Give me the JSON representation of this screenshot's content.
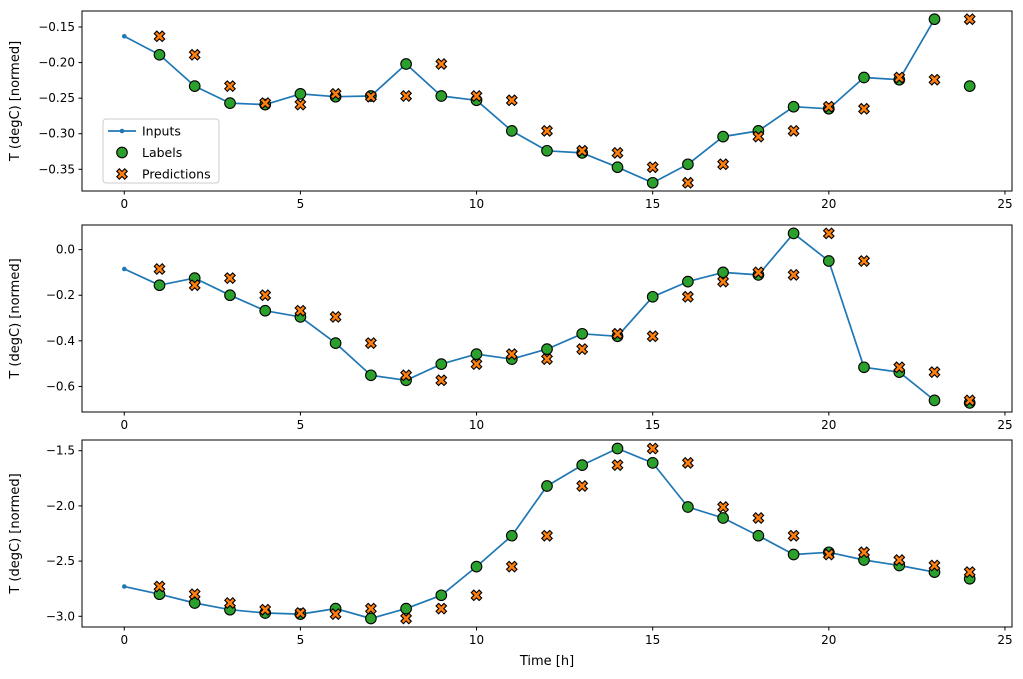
{
  "figure": {
    "xlabel": "Time [h]",
    "ylabel": "T (degC) [normed]",
    "x_ticks": [
      0,
      5,
      10,
      15,
      20,
      25
    ],
    "x_tick_labels": [
      "0",
      "5",
      "10",
      "15",
      "20",
      "25"
    ],
    "background_color": "#ffffff",
    "spine_color": "#000000",
    "legend": {
      "position": "upper left area of first subplot",
      "border_color": "#cccccc",
      "items": [
        {
          "label": "Inputs",
          "marker": "line-dot",
          "color": "#1f77b4"
        },
        {
          "label": "Labels",
          "marker": "circle",
          "color": "#2ca02c",
          "edge_color": "#000000"
        },
        {
          "label": "Predictions",
          "marker": "x",
          "color": "#ff7f0e",
          "edge_color": "#000000"
        }
      ]
    }
  },
  "chart_data": [
    {
      "type": "line",
      "title": "",
      "xlabel": "",
      "ylabel": "T (degC) [normed]",
      "xlim": [
        -1.2,
        25.2
      ],
      "ylim": [
        -0.3805,
        -0.1275
      ],
      "x_ticks": [
        0,
        5,
        10,
        15,
        20,
        25
      ],
      "y_ticks": [
        -0.15,
        -0.2,
        -0.25,
        -0.3,
        -0.35
      ],
      "y_tick_labels": [
        "−0.15",
        "−0.20",
        "−0.25",
        "−0.30",
        "−0.35"
      ],
      "grid": false,
      "series": [
        {
          "name": "Inputs",
          "style": "line-dot",
          "color": "#1f77b4",
          "x": [
            0,
            1,
            2,
            3,
            4,
            5,
            6,
            7,
            8,
            9,
            10,
            11,
            12,
            13,
            14,
            15,
            16,
            17,
            18,
            19,
            20,
            21,
            22,
            23
          ],
          "y": [
            -0.163,
            -0.189,
            -0.233,
            -0.257,
            -0.259,
            -0.244,
            -0.248,
            -0.247,
            -0.202,
            -0.247,
            -0.253,
            -0.296,
            -0.324,
            -0.327,
            -0.347,
            -0.369,
            -0.343,
            -0.304,
            -0.296,
            -0.262,
            -0.265,
            -0.221,
            -0.224,
            -0.139
          ]
        },
        {
          "name": "Labels",
          "style": "circle",
          "color": "#2ca02c",
          "x": [
            1,
            2,
            3,
            4,
            5,
            6,
            7,
            8,
            9,
            10,
            11,
            12,
            13,
            14,
            15,
            16,
            17,
            18,
            19,
            20,
            21,
            22,
            23,
            24
          ],
          "y": [
            -0.189,
            -0.233,
            -0.257,
            -0.259,
            -0.244,
            -0.248,
            -0.247,
            -0.202,
            -0.247,
            -0.253,
            -0.296,
            -0.324,
            -0.327,
            -0.347,
            -0.369,
            -0.343,
            -0.304,
            -0.296,
            -0.262,
            -0.265,
            -0.221,
            -0.224,
            -0.139,
            -0.233
          ]
        },
        {
          "name": "Predictions",
          "style": "x",
          "color": "#ff7f0e",
          "x": [
            1,
            2,
            3,
            4,
            5,
            6,
            7,
            8,
            9,
            10,
            11,
            12,
            13,
            14,
            15,
            16,
            17,
            18,
            19,
            20,
            21,
            22,
            23,
            24
          ],
          "y": [
            -0.163,
            -0.189,
            -0.233,
            -0.257,
            -0.259,
            -0.244,
            -0.248,
            -0.247,
            -0.202,
            -0.247,
            -0.253,
            -0.296,
            -0.324,
            -0.327,
            -0.347,
            -0.369,
            -0.343,
            -0.304,
            -0.296,
            -0.262,
            -0.265,
            -0.221,
            -0.224,
            -0.139
          ]
        }
      ]
    },
    {
      "type": "line",
      "title": "",
      "xlabel": "",
      "ylabel": "T (degC) [normed]",
      "xlim": [
        -1.2,
        25.2
      ],
      "ylim": [
        -0.712,
        0.108
      ],
      "x_ticks": [
        0,
        5,
        10,
        15,
        20,
        25
      ],
      "y_ticks": [
        0.0,
        -0.2,
        -0.4,
        -0.6
      ],
      "y_tick_labels": [
        "0.0",
        "−0.2",
        "−0.4",
        "−0.6"
      ],
      "grid": false,
      "series": [
        {
          "name": "Inputs",
          "style": "line-dot",
          "color": "#1f77b4",
          "x": [
            0,
            1,
            2,
            3,
            4,
            5,
            6,
            7,
            8,
            9,
            10,
            11,
            12,
            13,
            14,
            15,
            16,
            17,
            18,
            19,
            20,
            21,
            22,
            23
          ],
          "y": [
            -0.085,
            -0.156,
            -0.125,
            -0.2,
            -0.268,
            -0.295,
            -0.41,
            -0.551,
            -0.573,
            -0.502,
            -0.458,
            -0.48,
            -0.436,
            -0.369,
            -0.38,
            -0.207,
            -0.14,
            -0.1,
            -0.111,
            0.071,
            -0.05,
            -0.516,
            -0.537,
            -0.661
          ]
        },
        {
          "name": "Labels",
          "style": "circle",
          "color": "#2ca02c",
          "x": [
            1,
            2,
            3,
            4,
            5,
            6,
            7,
            8,
            9,
            10,
            11,
            12,
            13,
            14,
            15,
            16,
            17,
            18,
            19,
            20,
            21,
            22,
            23,
            24
          ],
          "y": [
            -0.156,
            -0.125,
            -0.2,
            -0.268,
            -0.295,
            -0.41,
            -0.551,
            -0.573,
            -0.502,
            -0.458,
            -0.48,
            -0.436,
            -0.369,
            -0.38,
            -0.207,
            -0.14,
            -0.1,
            -0.111,
            0.071,
            -0.05,
            -0.516,
            -0.537,
            -0.661,
            -0.672
          ]
        },
        {
          "name": "Predictions",
          "style": "x",
          "color": "#ff7f0e",
          "x": [
            1,
            2,
            3,
            4,
            5,
            6,
            7,
            8,
            9,
            10,
            11,
            12,
            13,
            14,
            15,
            16,
            17,
            18,
            19,
            20,
            21,
            22,
            23,
            24
          ],
          "y": [
            -0.085,
            -0.156,
            -0.125,
            -0.2,
            -0.268,
            -0.295,
            -0.41,
            -0.551,
            -0.573,
            -0.502,
            -0.458,
            -0.48,
            -0.436,
            -0.369,
            -0.38,
            -0.207,
            -0.14,
            -0.1,
            -0.111,
            0.071,
            -0.05,
            -0.516,
            -0.537,
            -0.661
          ]
        }
      ]
    },
    {
      "type": "line",
      "title": "",
      "xlabel": "Time [h]",
      "ylabel": "T (degC) [normed]",
      "xlim": [
        -1.2,
        25.2
      ],
      "ylim": [
        -3.097,
        -1.403
      ],
      "x_ticks": [
        0,
        5,
        10,
        15,
        20,
        25
      ],
      "y_ticks": [
        -1.5,
        -2.0,
        -2.5,
        -3.0
      ],
      "y_tick_labels": [
        "−1.5",
        "−2.0",
        "−2.5",
        "−3.0"
      ],
      "grid": false,
      "series": [
        {
          "name": "Inputs",
          "style": "line-dot",
          "color": "#1f77b4",
          "x": [
            0,
            1,
            2,
            3,
            4,
            5,
            6,
            7,
            8,
            9,
            10,
            11,
            12,
            13,
            14,
            15,
            16,
            17,
            18,
            19,
            20,
            21,
            22,
            23
          ],
          "y": [
            -2.73,
            -2.8,
            -2.88,
            -2.94,
            -2.97,
            -2.98,
            -2.93,
            -3.02,
            -2.93,
            -2.81,
            -2.55,
            -2.27,
            -1.82,
            -1.63,
            -1.48,
            -1.61,
            -2.01,
            -2.11,
            -2.27,
            -2.44,
            -2.42,
            -2.49,
            -2.54,
            -2.6
          ]
        },
        {
          "name": "Labels",
          "style": "circle",
          "color": "#2ca02c",
          "x": [
            1,
            2,
            3,
            4,
            5,
            6,
            7,
            8,
            9,
            10,
            11,
            12,
            13,
            14,
            15,
            16,
            17,
            18,
            19,
            20,
            21,
            22,
            23,
            24
          ],
          "y": [
            -2.8,
            -2.88,
            -2.94,
            -2.97,
            -2.98,
            -2.93,
            -3.02,
            -2.93,
            -2.81,
            -2.55,
            -2.27,
            -1.82,
            -1.63,
            -1.48,
            -1.61,
            -2.01,
            -2.11,
            -2.27,
            -2.44,
            -2.42,
            -2.49,
            -2.54,
            -2.6,
            -2.66
          ]
        },
        {
          "name": "Predictions",
          "style": "x",
          "color": "#ff7f0e",
          "x": [
            1,
            2,
            3,
            4,
            5,
            6,
            7,
            8,
            9,
            10,
            11,
            12,
            13,
            14,
            15,
            16,
            17,
            18,
            19,
            20,
            21,
            22,
            23,
            24
          ],
          "y": [
            -2.73,
            -2.8,
            -2.88,
            -2.94,
            -2.97,
            -2.98,
            -2.93,
            -3.02,
            -2.93,
            -2.81,
            -2.55,
            -2.27,
            -1.82,
            -1.63,
            -1.48,
            -1.61,
            -2.01,
            -2.11,
            -2.27,
            -2.44,
            -2.42,
            -2.49,
            -2.54,
            -2.6
          ]
        }
      ]
    }
  ]
}
